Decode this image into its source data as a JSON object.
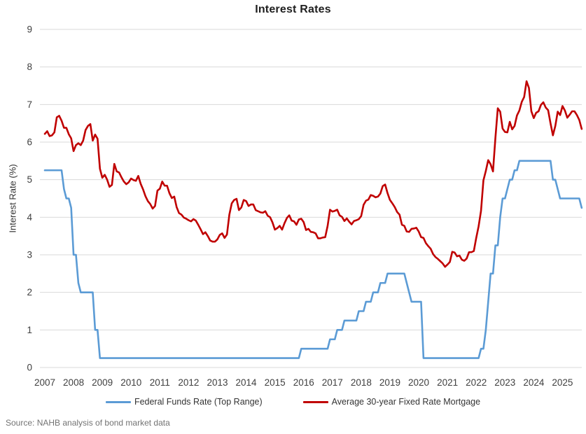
{
  "chart": {
    "title": "Interest Rates",
    "ylabel": "Interest Rate (%)"
  },
  "legend": {
    "items": [
      {
        "label": "Federal Funds Rate (Top Range)",
        "color": "#5B9BD5"
      },
      {
        "label": "Average 30-year Fixed Rate Mortgage",
        "color": "#C00000"
      }
    ]
  },
  "source": "Source: NAHB analysis of bond market data",
  "colors": {
    "gridline": "#d9d9d9",
    "axis_text": "#404040",
    "series_blue": "#5B9BD5",
    "series_red": "#C00000"
  },
  "chart_data": {
    "type": "line",
    "title": "Interest Rates",
    "xlabel": "",
    "ylabel": "Interest Rate (%)",
    "ylim": [
      0,
      9
    ],
    "yticks": [
      0,
      1,
      2,
      3,
      4,
      5,
      6,
      7,
      8,
      9
    ],
    "grid": "horizontal",
    "legend_position": "bottom",
    "x_tick_years": [
      "2007",
      "2008",
      "2009",
      "2010",
      "2011",
      "2012",
      "2013",
      "2014",
      "2015",
      "2016",
      "2017",
      "2018",
      "2019",
      "2020",
      "2021",
      "2022",
      "2023",
      "2024",
      "2025"
    ],
    "x_frequency": "monthly",
    "x_start": "2007-01",
    "x_end": "2025-09",
    "series": [
      {
        "name": "Federal Funds Rate (Top Range)",
        "color": "#5B9BD5",
        "values": [
          5.25,
          5.25,
          5.25,
          5.25,
          5.25,
          5.25,
          5.25,
          5.25,
          4.75,
          4.5,
          4.5,
          4.25,
          3,
          3,
          2.25,
          2,
          2,
          2,
          2,
          2,
          2,
          1,
          1,
          0.25,
          0.25,
          0.25,
          0.25,
          0.25,
          0.25,
          0.25,
          0.25,
          0.25,
          0.25,
          0.25,
          0.25,
          0.25,
          0.25,
          0.25,
          0.25,
          0.25,
          0.25,
          0.25,
          0.25,
          0.25,
          0.25,
          0.25,
          0.25,
          0.25,
          0.25,
          0.25,
          0.25,
          0.25,
          0.25,
          0.25,
          0.25,
          0.25,
          0.25,
          0.25,
          0.25,
          0.25,
          0.25,
          0.25,
          0.25,
          0.25,
          0.25,
          0.25,
          0.25,
          0.25,
          0.25,
          0.25,
          0.25,
          0.25,
          0.25,
          0.25,
          0.25,
          0.25,
          0.25,
          0.25,
          0.25,
          0.25,
          0.25,
          0.25,
          0.25,
          0.25,
          0.25,
          0.25,
          0.25,
          0.25,
          0.25,
          0.25,
          0.25,
          0.25,
          0.25,
          0.25,
          0.25,
          0.25,
          0.25,
          0.25,
          0.25,
          0.25,
          0.25,
          0.25,
          0.25,
          0.25,
          0.25,
          0.25,
          0.25,
          0.5,
          0.5,
          0.5,
          0.5,
          0.5,
          0.5,
          0.5,
          0.5,
          0.5,
          0.5,
          0.5,
          0.5,
          0.75,
          0.75,
          0.75,
          1,
          1,
          1,
          1.25,
          1.25,
          1.25,
          1.25,
          1.25,
          1.25,
          1.5,
          1.5,
          1.5,
          1.75,
          1.75,
          1.75,
          2,
          2,
          2,
          2.25,
          2.25,
          2.25,
          2.5,
          2.5,
          2.5,
          2.5,
          2.5,
          2.5,
          2.5,
          2.5,
          2.25,
          2,
          1.75,
          1.75,
          1.75,
          1.75,
          1.75,
          0.25,
          0.25,
          0.25,
          0.25,
          0.25,
          0.25,
          0.25,
          0.25,
          0.25,
          0.25,
          0.25,
          0.25,
          0.25,
          0.25,
          0.25,
          0.25,
          0.25,
          0.25,
          0.25,
          0.25,
          0.25,
          0.25,
          0.25,
          0.25,
          0.5,
          0.5,
          1,
          1.75,
          2.5,
          2.5,
          3.25,
          3.25,
          4,
          4.5,
          4.5,
          4.75,
          5,
          5,
          5.25,
          5.25,
          5.5,
          5.5,
          5.5,
          5.5,
          5.5,
          5.5,
          5.5,
          5.5,
          5.5,
          5.5,
          5.5,
          5.5,
          5.5,
          5.5,
          5,
          5,
          4.75,
          4.5,
          4.5,
          4.5,
          4.5,
          4.5,
          4.5,
          4.5,
          4.5,
          4.5,
          4.25
        ]
      },
      {
        "name": "Average 30-year Fixed Rate Mortgage",
        "color": "#C00000",
        "values": [
          6.22,
          6.29,
          6.16,
          6.18,
          6.26,
          6.66,
          6.7,
          6.57,
          6.38,
          6.38,
          6.21,
          6.1,
          5.76,
          5.92,
          5.97,
          5.92,
          6.04,
          6.32,
          6.43,
          6.48,
          6.04,
          6.2,
          6.09,
          5.29,
          5.05,
          5.13,
          5.0,
          4.81,
          4.86,
          5.42,
          5.22,
          5.19,
          5.06,
          4.95,
          4.88,
          4.93,
          5.03,
          4.99,
          4.97,
          5.1,
          4.89,
          4.74,
          4.56,
          4.43,
          4.35,
          4.23,
          4.3,
          4.71,
          4.76,
          4.95,
          4.84,
          4.84,
          4.64,
          4.51,
          4.55,
          4.27,
          4.11,
          4.07,
          3.99,
          3.96,
          3.92,
          3.89,
          3.95,
          3.91,
          3.8,
          3.68,
          3.55,
          3.6,
          3.5,
          3.38,
          3.35,
          3.35,
          3.41,
          3.53,
          3.57,
          3.45,
          3.54,
          4.07,
          4.37,
          4.46,
          4.49,
          4.19,
          4.26,
          4.46,
          4.43,
          4.3,
          4.34,
          4.34,
          4.19,
          4.16,
          4.13,
          4.12,
          4.16,
          4.04,
          4.0,
          3.86,
          3.67,
          3.71,
          3.77,
          3.67,
          3.84,
          3.98,
          4.05,
          3.91,
          3.89,
          3.8,
          3.94,
          3.96,
          3.87,
          3.66,
          3.69,
          3.61,
          3.6,
          3.57,
          3.44,
          3.44,
          3.46,
          3.47,
          3.77,
          4.2,
          4.15,
          4.17,
          4.2,
          4.05,
          4.01,
          3.9,
          3.97,
          3.88,
          3.81,
          3.9,
          3.92,
          3.95,
          4.03,
          4.33,
          4.44,
          4.47,
          4.59,
          4.57,
          4.53,
          4.55,
          4.63,
          4.83,
          4.87,
          4.64,
          4.46,
          4.37,
          4.27,
          4.14,
          4.07,
          3.8,
          3.77,
          3.62,
          3.61,
          3.69,
          3.7,
          3.72,
          3.62,
          3.47,
          3.45,
          3.31,
          3.23,
          3.16,
          3.02,
          2.94,
          2.89,
          2.83,
          2.77,
          2.68,
          2.74,
          2.81,
          3.08,
          3.06,
          2.96,
          2.98,
          2.87,
          2.84,
          2.9,
          3.07,
          3.07,
          3.1,
          3.45,
          3.76,
          4.17,
          4.98,
          5.23,
          5.52,
          5.41,
          5.22,
          6.11,
          6.9,
          6.81,
          6.36,
          6.27,
          6.26,
          6.54,
          6.34,
          6.43,
          6.71,
          6.84,
          7.07,
          7.2,
          7.62,
          7.44,
          6.82,
          6.64,
          6.78,
          6.82,
          6.99,
          7.06,
          6.92,
          6.85,
          6.5,
          6.18,
          6.43,
          6.81,
          6.72,
          6.96,
          6.84,
          6.65,
          6.73,
          6.82,
          6.82,
          6.72,
          6.59,
          6.35
        ]
      }
    ]
  }
}
